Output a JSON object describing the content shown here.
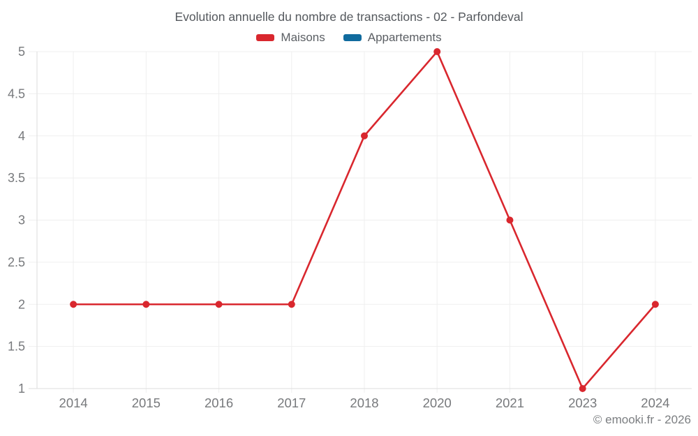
{
  "header": {
    "title": "Evolution annuelle du nombre de transactions - 02 - Parfondeval"
  },
  "legend": {
    "items": [
      {
        "label": "Maisons",
        "color": "#d9272e"
      },
      {
        "label": "Appartements",
        "color": "#106b9e"
      }
    ]
  },
  "footer": {
    "credit": "© emooki.fr - 2026"
  },
  "colors": {
    "grid": "#efefef",
    "axis": "#dedede",
    "tick_text": "#77797c",
    "series_red": "#d9272e",
    "series_blue": "#106b9e"
  },
  "chart_data": {
    "type": "line",
    "title": "Evolution annuelle du nombre de transactions - 02 - Parfondeval",
    "categories": [
      "2014",
      "2015",
      "2016",
      "2017",
      "2018",
      "2020",
      "2021",
      "2023",
      "2024"
    ],
    "series": [
      {
        "name": "Maisons",
        "color": "#d9272e",
        "values": [
          2,
          2,
          2,
          2,
          4,
          5,
          3,
          1,
          2
        ]
      },
      {
        "name": "Appartements",
        "color": "#106b9e",
        "values": []
      }
    ],
    "xlabel": "",
    "ylabel": "",
    "ylim": [
      1,
      5
    ],
    "yticks": [
      1,
      1.5,
      2,
      2.5,
      3,
      3.5,
      4,
      4.5,
      5
    ],
    "grid": true,
    "legend_position": "top",
    "point_markers": true
  }
}
